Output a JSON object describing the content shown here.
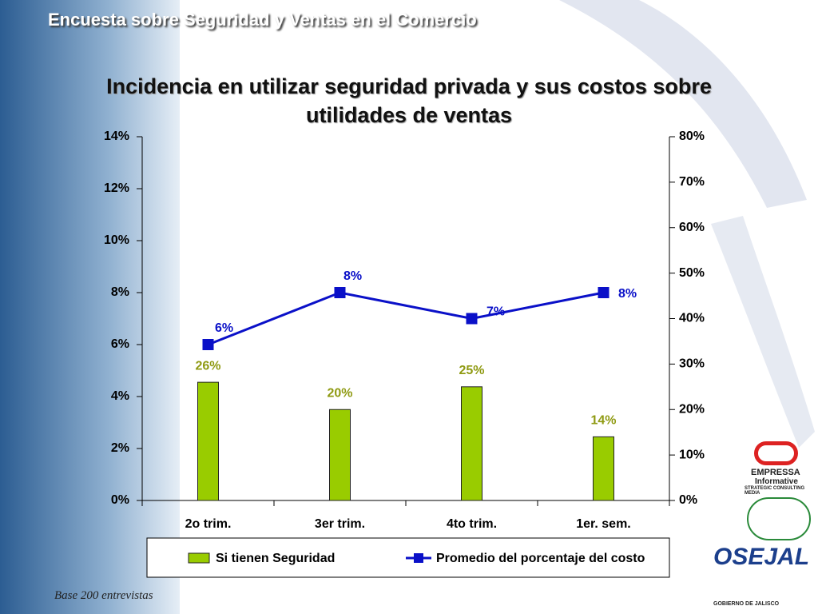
{
  "header": "Encuesta sobre Seguridad y Ventas en el Comercio",
  "footer": "Base 200 entrevistas",
  "logos": [
    "EMPRESSA",
    "Informative",
    "STRATEGIC CONSULTING MEDIA",
    "OSEJAL",
    "GOBIERNO DE JALISCO"
  ],
  "chart_data": {
    "type": "bar-line",
    "title": "Incidencia en utilizar seguridad privada y sus costos sobre utilidades de ventas",
    "categories": [
      "2o trim.",
      "3er trim.",
      "4to trim.",
      "1er. sem."
    ],
    "series": [
      {
        "name": "Si tienen Seguridad",
        "type": "bar",
        "axis": "y2",
        "color": "#99cc00",
        "label_color": "#8f9a12",
        "values": [
          26,
          20,
          25,
          14
        ],
        "value_labels": [
          "26%",
          "20%",
          "25%",
          "14%"
        ]
      },
      {
        "name": "Promedio del porcentaje del costo",
        "type": "line",
        "axis": "y",
        "color": "#0a10c8",
        "label_color": "#0a10c8",
        "values": [
          6,
          8,
          7,
          8
        ],
        "value_labels": [
          "6%",
          "8%",
          "7%",
          "8%"
        ]
      }
    ],
    "ylim": [
      0,
      14
    ],
    "yticks": [
      {
        "value": 0,
        "label": "0%"
      },
      {
        "value": 2,
        "label": "2%"
      },
      {
        "value": 4,
        "label": "4%"
      },
      {
        "value": 6,
        "label": "6%"
      },
      {
        "value": 8,
        "label": "8%"
      },
      {
        "value": 10,
        "label": "10%"
      },
      {
        "value": 12,
        "label": "12%"
      },
      {
        "value": 14,
        "label": "14%"
      }
    ],
    "y2lim": [
      0,
      80
    ],
    "y2ticks": [
      {
        "value": 0,
        "label": "0%"
      },
      {
        "value": 10,
        "label": "10%"
      },
      {
        "value": 20,
        "label": "20%"
      },
      {
        "value": 30,
        "label": "30%"
      },
      {
        "value": 40,
        "label": "40%"
      },
      {
        "value": 50,
        "label": "50%"
      },
      {
        "value": 60,
        "label": "60%"
      },
      {
        "value": 70,
        "label": "70%"
      },
      {
        "value": 80,
        "label": "80%"
      }
    ],
    "legend": "bottom"
  }
}
